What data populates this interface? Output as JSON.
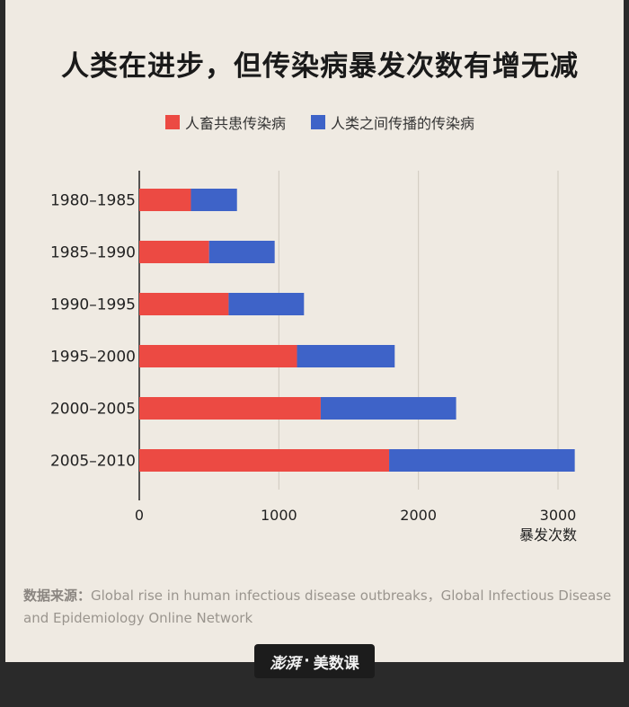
{
  "title": "人类在进步，但传染病暴发次数有增无减",
  "legend": [
    {
      "label": "人畜共患传染病",
      "color": "#ec4a43"
    },
    {
      "label": "人类之间传播的传染病",
      "color": "#3e63c8"
    }
  ],
  "chart_data": {
    "type": "bar",
    "orientation": "horizontal",
    "stacked": true,
    "categories": [
      "1980–1985",
      "1985–1990",
      "1990–1995",
      "1995–2000",
      "2000–2005",
      "2005–2010"
    ],
    "series": [
      {
        "name": "人畜共患传染病",
        "values": [
          370,
          500,
          640,
          1130,
          1300,
          1790
        ],
        "color": "#ec4a43"
      },
      {
        "name": "人类之间传播的传染病",
        "values": [
          330,
          470,
          540,
          700,
          970,
          1330
        ],
        "color": "#3e63c8"
      }
    ],
    "xticks": [
      "0",
      "1000",
      "2000",
      "3000"
    ],
    "xlim": [
      0,
      3000
    ],
    "xlabel": "暴发次数",
    "grid": true
  },
  "source": {
    "label": "数据来源：",
    "text": "Global rise in human infectious disease outbreaks，Global Infectious Disease and Epidemiology Online Network"
  },
  "brand": {
    "logo": "澎湃",
    "separator": "·",
    "name": "美数课"
  }
}
